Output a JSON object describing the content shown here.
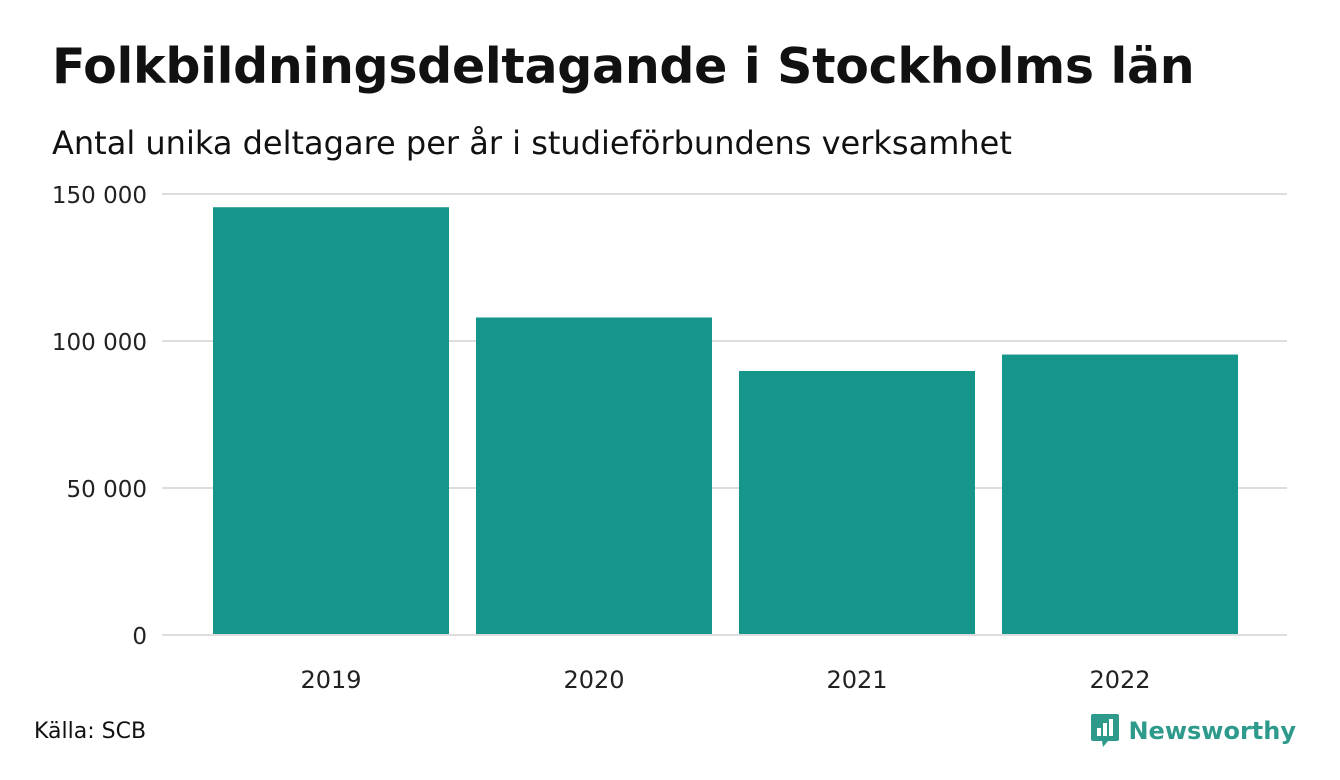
{
  "title": "Folkbildningsdeltagande i Stockholms län",
  "subtitle": "Antal unika deltagare per år i studieförbundens verksamhet",
  "source": "Källa: SCB",
  "brand": {
    "name": "Newsworthy",
    "icon": "newsworthy-logo-icon",
    "color": "#2e9a8c"
  },
  "chart_data": {
    "type": "bar",
    "categories": [
      "2019",
      "2020",
      "2021",
      "2022"
    ],
    "values": [
      145500,
      108000,
      89800,
      95400
    ],
    "ylim": [
      0,
      150000
    ],
    "yticks": [
      0,
      50000,
      100000,
      150000
    ],
    "ytick_labels": [
      "0",
      "50 000",
      "100 000",
      "150 000"
    ],
    "xlabel": "",
    "ylabel": "",
    "grid": true,
    "bar_color": "#16968a",
    "grid_color": "#dddddd"
  }
}
